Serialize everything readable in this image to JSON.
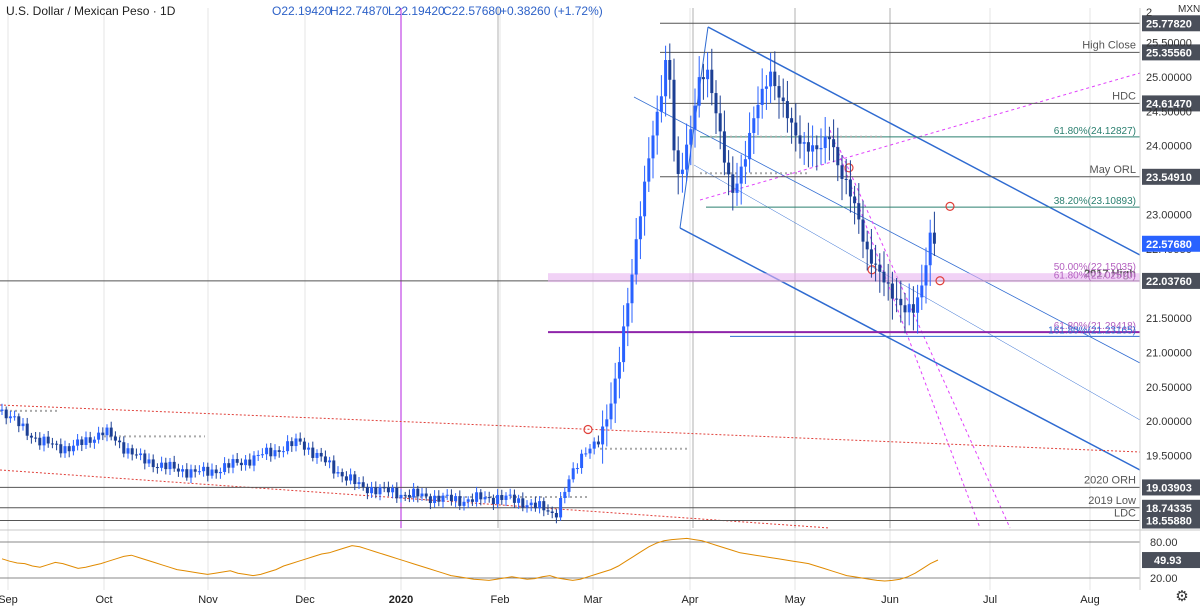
{
  "header": {
    "symbol": "U.S. Dollar / Mexican Peso · 1D",
    "open": "O22.19420",
    "high": "H22.74870",
    "low": "L22.19420",
    "close": "C22.57680",
    "change": "+0.38260 (+1.72%)"
  },
  "currency": "MXN",
  "colors": {
    "up": "#2962ff",
    "down": "#1c3f94",
    "channel": "#2f6bd1",
    "pink": "#e040fb",
    "red": "#e0403a",
    "purple": "#8e24aa",
    "rsi": "#e08a00",
    "price_label_bg": "#4a4f5a",
    "current_bg": "#2962ff"
  },
  "chart_data": {
    "type": "candlestick",
    "title": "U.S. Dollar / Mexican Peso · 1D",
    "ylim": [
      18.45,
      26.0
    ],
    "x_labels": [
      "Sep",
      "Oct",
      "Nov",
      "Dec",
      "2020",
      "Feb",
      "Mar",
      "Apr",
      "May",
      "Jun",
      "Jul",
      "Aug"
    ],
    "y_ticks": [
      "2",
      "25.50000",
      "25.00000",
      "24.50000",
      "24.00000",
      "23.00000",
      "22.49950",
      "21.50000",
      "21.00000",
      "20.50000",
      "20.00000",
      "19.50000"
    ],
    "current_price": 22.5768,
    "current_label": "22.57680",
    "levels": [
      {
        "value": 25.7782,
        "label": "25.77820",
        "name": ""
      },
      {
        "value": 25.3556,
        "label": "25.35560",
        "name": "High Close"
      },
      {
        "value": 24.6147,
        "label": "24.61470",
        "name": "HDC"
      },
      {
        "value": 23.5491,
        "label": "23.54910",
        "name": "May ORL"
      },
      {
        "value": 22.0376,
        "label": "22.03760",
        "name": "2017 High"
      },
      {
        "value": 19.039,
        "label": "19.03903",
        "name": "2020 ORH"
      },
      {
        "value": 18.7434,
        "label": "18.74335",
        "name": "2019 Low"
      },
      {
        "value": 18.5588,
        "label": "18.55880",
        "name": "LDC"
      }
    ],
    "fib_labels": [
      {
        "text": "61.80%(24.12827)",
        "value": 24.12827
      },
      {
        "text": "38.20%(23.10893)",
        "value": 23.10893
      },
      {
        "text": "50.00%(22.15035)",
        "value": 22.15035
      },
      {
        "text": "61.80%(22.02570)",
        "value": 22.0257
      },
      {
        "text": "61.80%(21.29418)",
        "value": 21.29418
      },
      {
        "text": "161.80%(21.23165)",
        "value": 21.23165
      }
    ],
    "rsi": {
      "value_label": "49.93",
      "upper_label": "80.00",
      "lower_label": "20.00",
      "upper": 80,
      "lower": 20,
      "values": [
        52,
        48,
        45,
        44,
        40,
        38,
        42,
        46,
        44,
        40,
        36,
        38,
        41,
        44,
        48,
        52,
        56,
        58,
        54,
        50,
        46,
        42,
        38,
        34,
        32,
        30,
        28,
        26,
        28,
        30,
        32,
        28,
        26,
        24,
        26,
        30,
        34,
        40,
        44,
        48,
        52,
        56,
        60,
        62,
        66,
        70,
        74,
        72,
        68,
        64,
        60,
        56,
        52,
        48,
        44,
        40,
        36,
        32,
        28,
        24,
        22,
        20,
        18,
        17,
        16,
        18,
        20,
        22,
        20,
        18,
        19,
        22,
        24,
        20,
        18,
        16,
        18,
        22,
        26,
        30,
        34,
        40,
        48,
        56,
        64,
        72,
        78,
        82,
        84,
        85,
        86,
        84,
        82,
        78,
        74,
        70,
        66,
        62,
        60,
        58,
        56,
        54,
        52,
        50,
        48,
        46,
        44,
        40,
        36,
        32,
        28,
        24,
        22,
        20,
        18,
        16,
        15,
        16,
        18,
        22,
        28,
        36,
        44,
        49.93
      ]
    }
  }
}
